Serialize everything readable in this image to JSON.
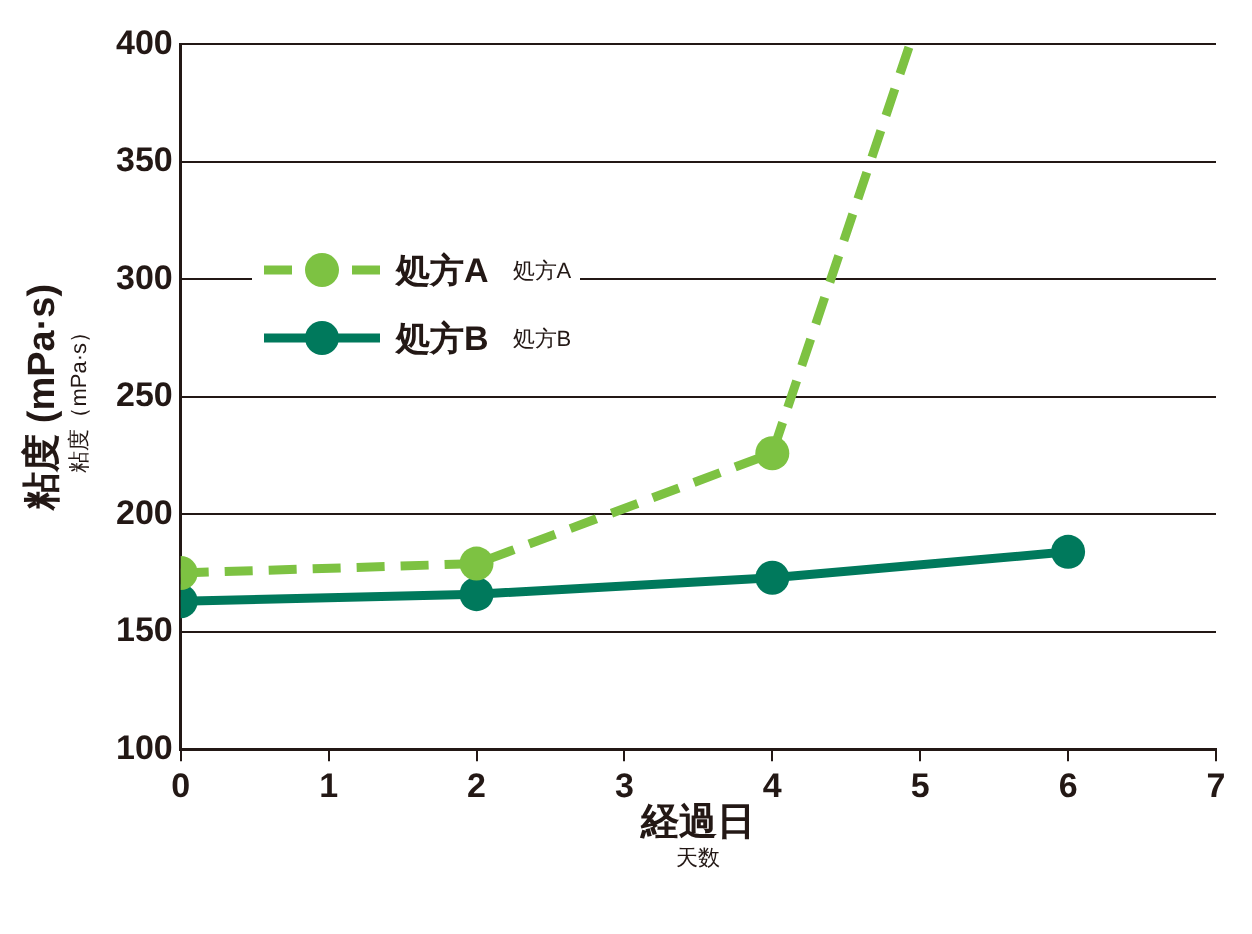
{
  "chart_data": {
    "type": "line",
    "xlabel": "経過日",
    "ylabel": "粘度 (mPa·s)",
    "annotations": [
      "粘度（mPa·s）",
      "天数",
      "処方A",
      "処方B"
    ],
    "xlim": [
      0,
      7
    ],
    "xticks": [
      0,
      1,
      2,
      3,
      4,
      5,
      6,
      7
    ],
    "ylim": [
      100,
      400
    ],
    "yticks": [
      100,
      150,
      200,
      250,
      300,
      350,
      400
    ],
    "grid": "y",
    "legend": "top left",
    "marker": "circle",
    "series": [
      {
        "name": "処方A",
        "color": "#7dc242",
        "line_style": "dashed",
        "x": [
          0,
          2,
          4,
          4.93
        ],
        "values": [
          175,
          179,
          226,
          400
        ]
      },
      {
        "name": "処方B",
        "color": "#00795c",
        "line_style": "solid",
        "x": [
          0,
          2,
          4,
          6
        ],
        "values": [
          163,
          166,
          173,
          184
        ]
      }
    ]
  }
}
